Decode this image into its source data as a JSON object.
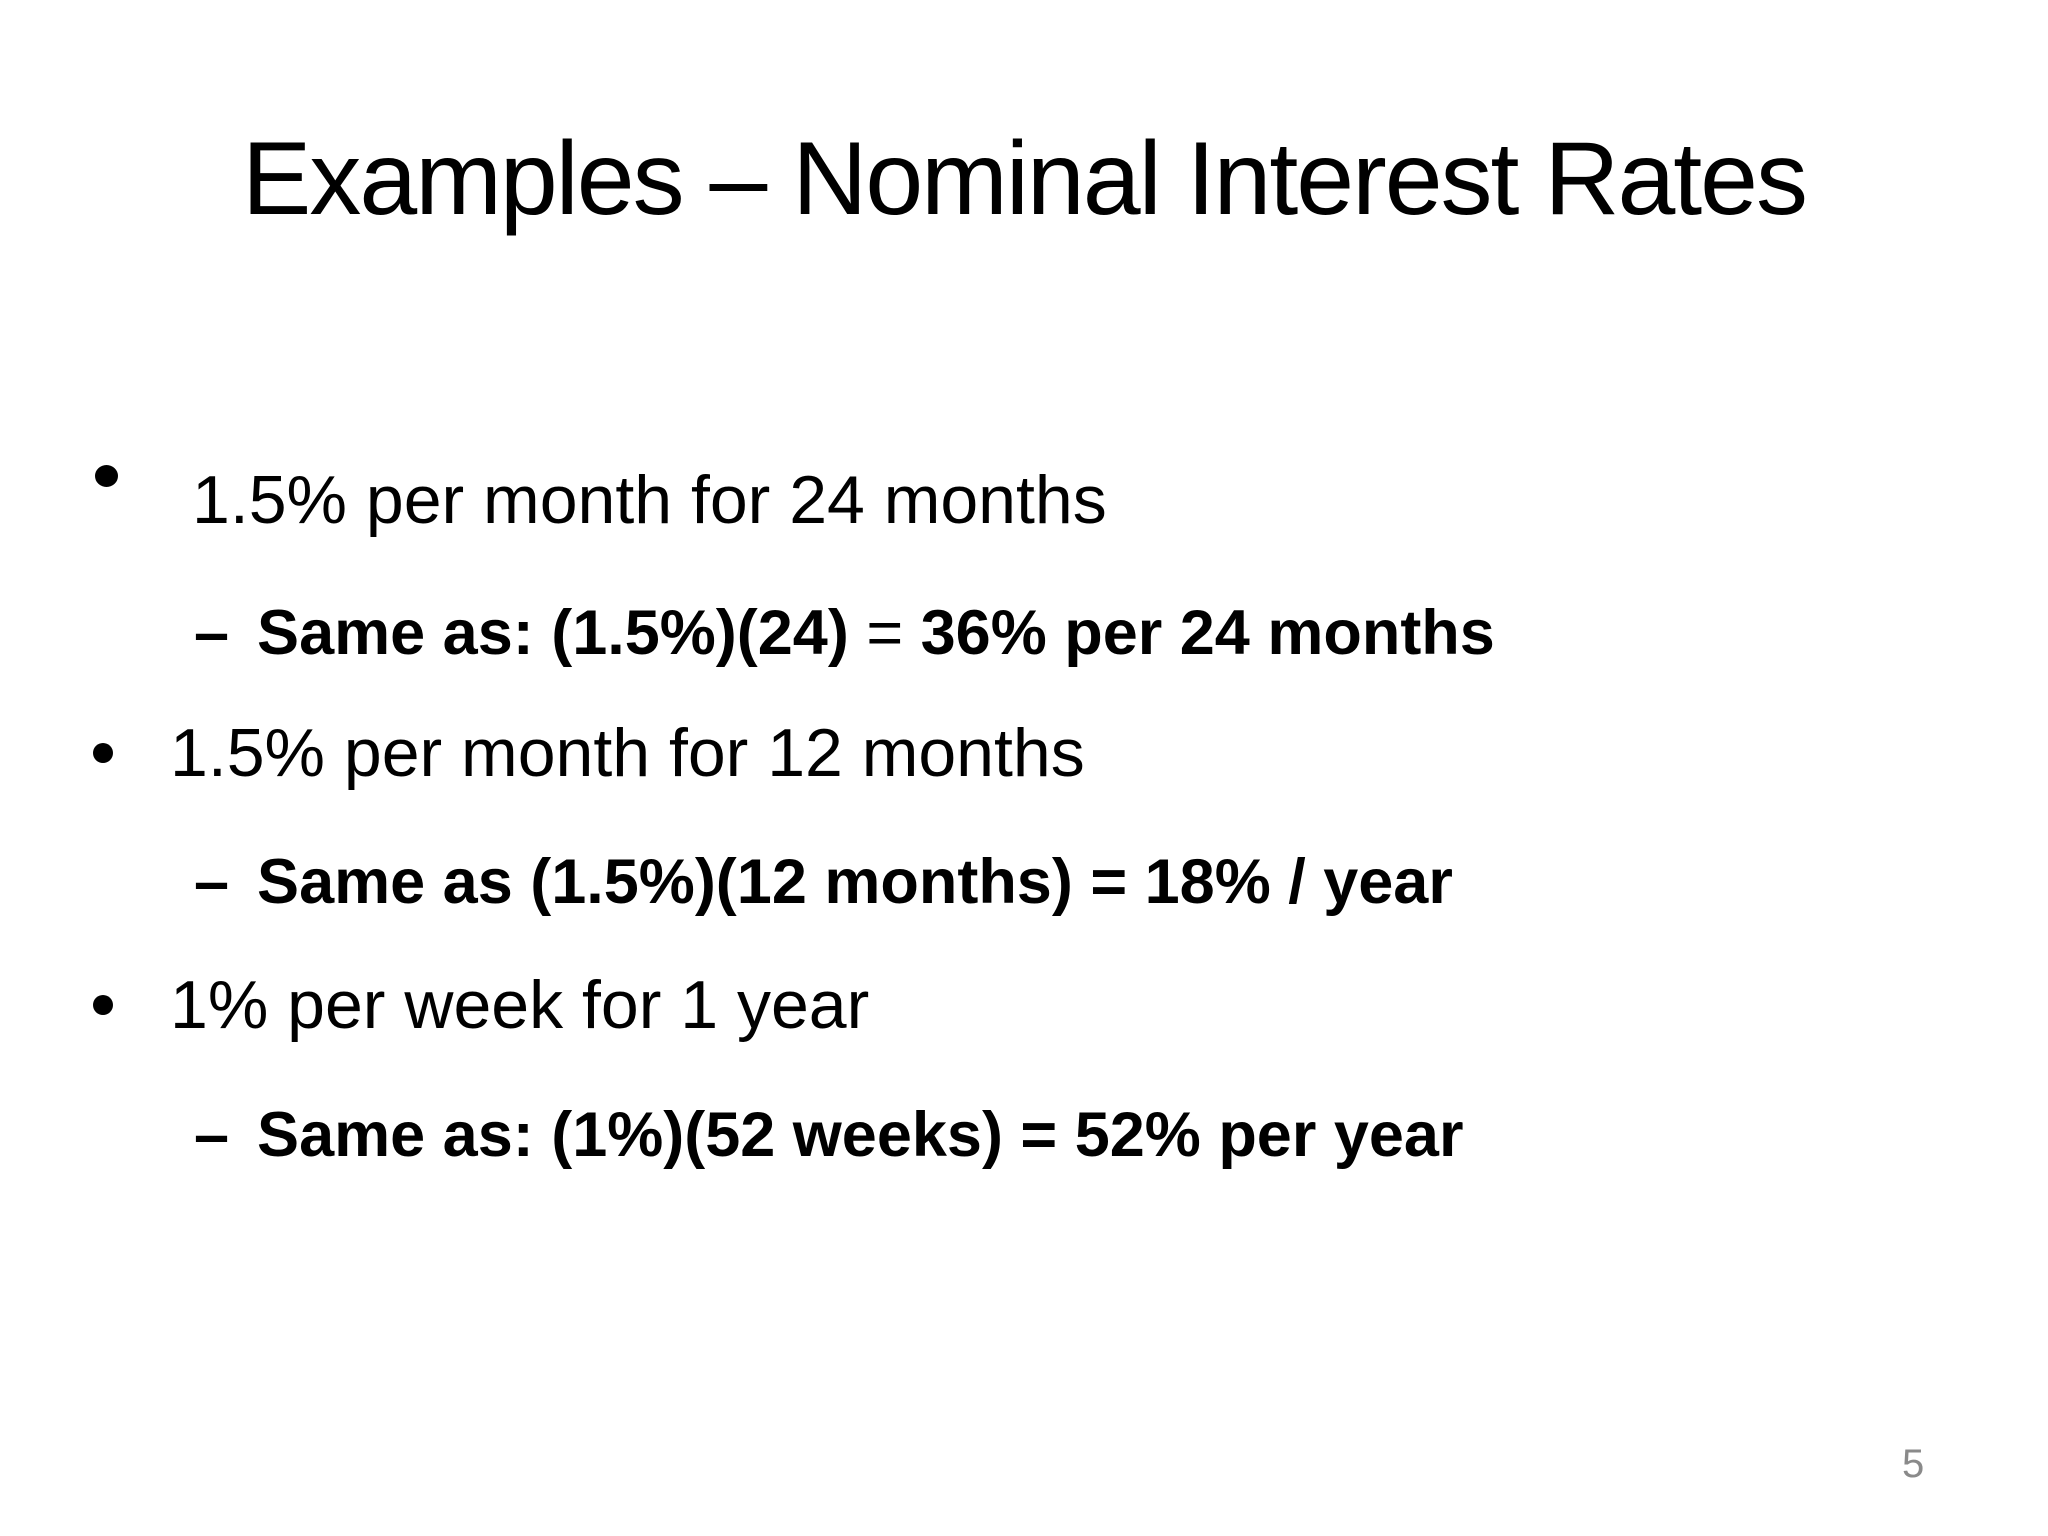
{
  "slide": {
    "title": "Examples – Nominal Interest Rates",
    "page_number": "5",
    "bullets": [
      {
        "text": "1.5% per month for 24 months",
        "sub": {
          "dash": "–",
          "segments": [
            {
              "text": "Same as: (1.5%)(24)",
              "bold": true
            },
            {
              "text": " = ",
              "bold": false
            },
            {
              "text": "36% per 24 months",
              "bold": true
            }
          ]
        }
      },
      {
        "text": "1.5% per month for 12 months",
        "sub": {
          "dash": "–",
          "segments": [
            {
              "text": "Same as (1.5%)(12 months) = 18% / year",
              "bold": true
            }
          ]
        }
      },
      {
        "text": "1% per week for 1 year",
        "sub": {
          "dash": "–",
          "segments": [
            {
              "text": "Same as: (1%)(52 weeks) = 52% per year",
              "bold": true
            }
          ]
        }
      }
    ],
    "colors": {
      "text": "#000000",
      "background": "#ffffff",
      "page_number": "#8a8a8a"
    }
  }
}
